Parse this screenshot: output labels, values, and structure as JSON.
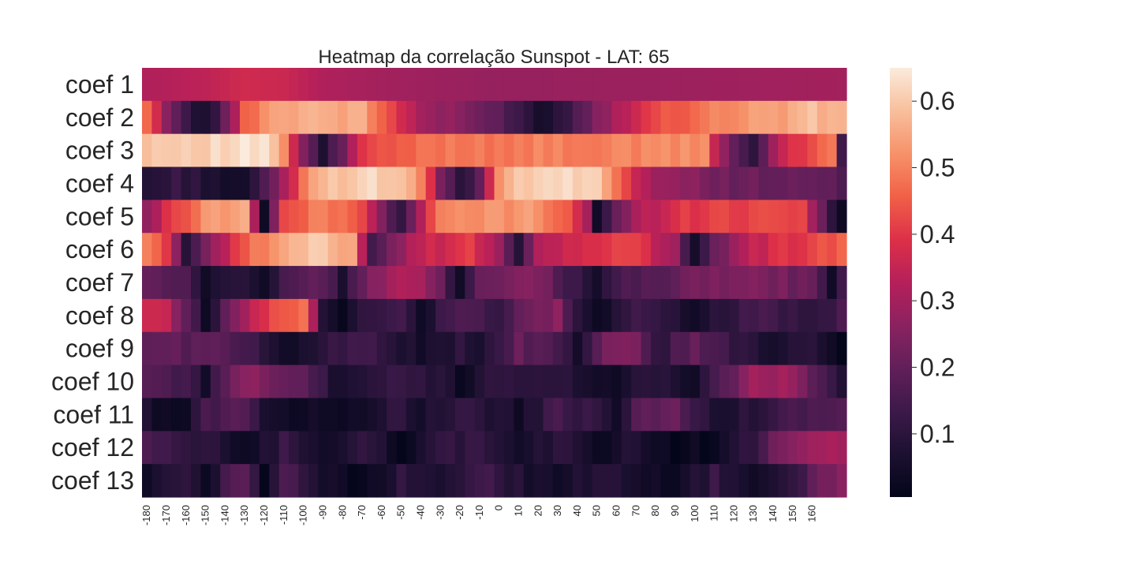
{
  "chart_data": {
    "type": "heatmap",
    "title": "Heatmap da correlação Sunspot - LAT: 65",
    "xlabel": "",
    "ylabel": "",
    "rows": [
      "coef 1",
      "coef 2",
      "coef 3",
      "coef 4",
      "coef 5",
      "coef 6",
      "coef 7",
      "coef 8",
      "coef 9",
      "coef 10",
      "coef 11",
      "coef 12",
      "coef 13"
    ],
    "x_start": -180,
    "x_step": 5,
    "x_count": 72,
    "x_tick_labels": [
      "-180",
      "-170",
      "-160",
      "-150",
      "-140",
      "-130",
      "-120",
      "-110",
      "-100",
      "-90",
      "-80",
      "-70",
      "-60",
      "-50",
      "-40",
      "-30",
      "-20",
      "-10",
      "0",
      "10",
      "20",
      "30",
      "40",
      "50",
      "60",
      "70",
      "80",
      "90",
      "100",
      "110",
      "120",
      "130",
      "140",
      "150",
      "160"
    ],
    "colorbar": {
      "vmin": 0.005,
      "vmax": 0.65,
      "ticks": [
        0.1,
        0.2,
        0.3,
        0.4,
        0.5,
        0.6
      ],
      "tick_labels": [
        "0.1",
        "0.2",
        "0.3",
        "0.4",
        "0.5",
        "0.6"
      ],
      "colormap": "rocket"
    },
    "row_profiles": [
      [
        [
          0,
          0.32
        ],
        [
          6,
          0.34
        ],
        [
          10,
          0.37
        ],
        [
          14,
          0.36
        ],
        [
          18,
          0.32
        ],
        [
          24,
          0.3
        ],
        [
          35,
          0.28
        ],
        [
          54,
          0.29
        ],
        [
          71,
          0.3
        ]
      ],
      [
        [
          0,
          0.45
        ],
        [
          2,
          0.28
        ],
        [
          4,
          0.12
        ],
        [
          6,
          0.06
        ],
        [
          8,
          0.2
        ],
        [
          10,
          0.45
        ],
        [
          12,
          0.53
        ],
        [
          16,
          0.57
        ],
        [
          22,
          0.55
        ],
        [
          24,
          0.46
        ],
        [
          28,
          0.3
        ],
        [
          34,
          0.22
        ],
        [
          38,
          0.15
        ],
        [
          40,
          0.05
        ],
        [
          42,
          0.1
        ],
        [
          46,
          0.25
        ],
        [
          48,
          0.33
        ],
        [
          52,
          0.42
        ],
        [
          56,
          0.48
        ],
        [
          60,
          0.52
        ],
        [
          65,
          0.55
        ],
        [
          68,
          0.58
        ],
        [
          71,
          0.55
        ]
      ],
      [
        [
          0,
          0.6
        ],
        [
          8,
          0.62
        ],
        [
          12,
          0.64
        ],
        [
          14,
          0.5
        ],
        [
          16,
          0.25
        ],
        [
          18,
          0.08
        ],
        [
          20,
          0.22
        ],
        [
          22,
          0.4
        ],
        [
          26,
          0.45
        ],
        [
          30,
          0.49
        ],
        [
          50,
          0.5
        ],
        [
          57,
          0.52
        ],
        [
          58,
          0.35
        ],
        [
          60,
          0.2
        ],
        [
          62,
          0.1
        ],
        [
          64,
          0.3
        ],
        [
          66,
          0.38
        ],
        [
          68,
          0.45
        ],
        [
          70,
          0.5
        ],
        [
          71,
          0.12
        ]
      ],
      [
        [
          0,
          0.08
        ],
        [
          3,
          0.12
        ],
        [
          5,
          0.1
        ],
        [
          8,
          0.06
        ],
        [
          10,
          0.04
        ],
        [
          12,
          0.15
        ],
        [
          14,
          0.3
        ],
        [
          16,
          0.48
        ],
        [
          18,
          0.58
        ],
        [
          22,
          0.62
        ],
        [
          26,
          0.6
        ],
        [
          28,
          0.5
        ],
        [
          30,
          0.25
        ],
        [
          32,
          0.08
        ],
        [
          34,
          0.2
        ],
        [
          36,
          0.5
        ],
        [
          38,
          0.6
        ],
        [
          42,
          0.62
        ],
        [
          44,
          0.61
        ],
        [
          46,
          0.6
        ],
        [
          48,
          0.5
        ],
        [
          50,
          0.35
        ],
        [
          52,
          0.3
        ],
        [
          56,
          0.25
        ],
        [
          60,
          0.22
        ],
        [
          66,
          0.2
        ],
        [
          71,
          0.18
        ]
      ],
      [
        [
          0,
          0.28
        ],
        [
          3,
          0.42
        ],
        [
          6,
          0.52
        ],
        [
          10,
          0.57
        ],
        [
          11,
          0.3
        ],
        [
          12,
          0.05
        ],
        [
          13,
          0.25
        ],
        [
          14,
          0.42
        ],
        [
          18,
          0.5
        ],
        [
          22,
          0.44
        ],
        [
          24,
          0.25
        ],
        [
          26,
          0.1
        ],
        [
          28,
          0.32
        ],
        [
          30,
          0.5
        ],
        [
          34,
          0.52
        ],
        [
          40,
          0.53
        ],
        [
          43,
          0.45
        ],
        [
          45,
          0.3
        ],
        [
          46,
          0.05
        ],
        [
          48,
          0.2
        ],
        [
          50,
          0.3
        ],
        [
          54,
          0.4
        ],
        [
          60,
          0.42
        ],
        [
          67,
          0.43
        ],
        [
          69,
          0.2
        ],
        [
          71,
          0.02
        ]
      ],
      [
        [
          0,
          0.5
        ],
        [
          2,
          0.4
        ],
        [
          4,
          0.1
        ],
        [
          6,
          0.25
        ],
        [
          8,
          0.35
        ],
        [
          10,
          0.45
        ],
        [
          14,
          0.55
        ],
        [
          18,
          0.6
        ],
        [
          21,
          0.55
        ],
        [
          23,
          0.15
        ],
        [
          25,
          0.25
        ],
        [
          28,
          0.35
        ],
        [
          33,
          0.4
        ],
        [
          36,
          0.3
        ],
        [
          38,
          0.1
        ],
        [
          40,
          0.3
        ],
        [
          44,
          0.38
        ],
        [
          50,
          0.42
        ],
        [
          54,
          0.28
        ],
        [
          56,
          0.05
        ],
        [
          58,
          0.2
        ],
        [
          60,
          0.3
        ],
        [
          64,
          0.38
        ],
        [
          68,
          0.42
        ],
        [
          71,
          0.45
        ]
      ],
      [
        [
          0,
          0.2
        ],
        [
          4,
          0.15
        ],
        [
          6,
          0.05
        ],
        [
          9,
          0.1
        ],
        [
          12,
          0.05
        ],
        [
          14,
          0.15
        ],
        [
          18,
          0.2
        ],
        [
          20,
          0.08
        ],
        [
          22,
          0.2
        ],
        [
          25,
          0.32
        ],
        [
          28,
          0.3
        ],
        [
          30,
          0.22
        ],
        [
          32,
          0.05
        ],
        [
          34,
          0.2
        ],
        [
          40,
          0.25
        ],
        [
          44,
          0.12
        ],
        [
          46,
          0.05
        ],
        [
          48,
          0.15
        ],
        [
          56,
          0.22
        ],
        [
          62,
          0.25
        ],
        [
          68,
          0.2
        ],
        [
          70,
          0.05
        ],
        [
          71,
          0.15
        ]
      ],
      [
        [
          0,
          0.38
        ],
        [
          2,
          0.35
        ],
        [
          4,
          0.2
        ],
        [
          6,
          0.05
        ],
        [
          9,
          0.25
        ],
        [
          11,
          0.35
        ],
        [
          13,
          0.45
        ],
        [
          16,
          0.48
        ],
        [
          17,
          0.3
        ],
        [
          18,
          0.1
        ],
        [
          20,
          0.02
        ],
        [
          22,
          0.12
        ],
        [
          26,
          0.15
        ],
        [
          28,
          0.05
        ],
        [
          32,
          0.18
        ],
        [
          36,
          0.1
        ],
        [
          38,
          0.2
        ],
        [
          42,
          0.25
        ],
        [
          44,
          0.1
        ],
        [
          46,
          0.02
        ],
        [
          50,
          0.15
        ],
        [
          54,
          0.1
        ],
        [
          56,
          0.05
        ],
        [
          62,
          0.15
        ],
        [
          68,
          0.12
        ],
        [
          71,
          0.15
        ]
      ],
      [
        [
          0,
          0.2
        ],
        [
          8,
          0.18
        ],
        [
          12,
          0.1
        ],
        [
          14,
          0.05
        ],
        [
          18,
          0.1
        ],
        [
          22,
          0.15
        ],
        [
          28,
          0.05
        ],
        [
          32,
          0.1
        ],
        [
          34,
          0.05
        ],
        [
          38,
          0.2
        ],
        [
          42,
          0.15
        ],
        [
          44,
          0.05
        ],
        [
          46,
          0.18
        ],
        [
          48,
          0.25
        ],
        [
          50,
          0.22
        ],
        [
          52,
          0.1
        ],
        [
          56,
          0.2
        ],
        [
          60,
          0.12
        ],
        [
          64,
          0.05
        ],
        [
          68,
          0.1
        ],
        [
          71,
          0.02
        ]
      ],
      [
        [
          0,
          0.18
        ],
        [
          4,
          0.15
        ],
        [
          6,
          0.05
        ],
        [
          8,
          0.2
        ],
        [
          10,
          0.28
        ],
        [
          12,
          0.25
        ],
        [
          16,
          0.18
        ],
        [
          20,
          0.05
        ],
        [
          24,
          0.12
        ],
        [
          30,
          0.1
        ],
        [
          32,
          0.02
        ],
        [
          36,
          0.12
        ],
        [
          40,
          0.1
        ],
        [
          44,
          0.08
        ],
        [
          48,
          0.05
        ],
        [
          52,
          0.1
        ],
        [
          56,
          0.05
        ],
        [
          58,
          0.15
        ],
        [
          60,
          0.2
        ],
        [
          62,
          0.3
        ],
        [
          66,
          0.28
        ],
        [
          68,
          0.18
        ],
        [
          71,
          0.08
        ]
      ],
      [
        [
          0,
          0.06
        ],
        [
          4,
          0.03
        ],
        [
          6,
          0.15
        ],
        [
          10,
          0.18
        ],
        [
          12,
          0.08
        ],
        [
          14,
          0.05
        ],
        [
          18,
          0.03
        ],
        [
          22,
          0.06
        ],
        [
          26,
          0.12
        ],
        [
          28,
          0.05
        ],
        [
          32,
          0.12
        ],
        [
          36,
          0.08
        ],
        [
          38,
          0.04
        ],
        [
          42,
          0.15
        ],
        [
          46,
          0.1
        ],
        [
          48,
          0.05
        ],
        [
          50,
          0.18
        ],
        [
          54,
          0.2
        ],
        [
          58,
          0.06
        ],
        [
          62,
          0.1
        ],
        [
          66,
          0.15
        ],
        [
          71,
          0.18
        ]
      ],
      [
        [
          0,
          0.15
        ],
        [
          4,
          0.1
        ],
        [
          8,
          0.08
        ],
        [
          10,
          0.02
        ],
        [
          14,
          0.12
        ],
        [
          18,
          0.05
        ],
        [
          22,
          0.1
        ],
        [
          26,
          0.03
        ],
        [
          30,
          0.1
        ],
        [
          34,
          0.12
        ],
        [
          38,
          0.05
        ],
        [
          42,
          0.1
        ],
        [
          46,
          0.03
        ],
        [
          50,
          0.08
        ],
        [
          54,
          0.02
        ],
        [
          58,
          0.03
        ],
        [
          62,
          0.12
        ],
        [
          64,
          0.2
        ],
        [
          66,
          0.25
        ],
        [
          68,
          0.3
        ],
        [
          71,
          0.3
        ]
      ],
      [
        [
          0,
          0.05
        ],
        [
          4,
          0.1
        ],
        [
          6,
          0.02
        ],
        [
          8,
          0.15
        ],
        [
          10,
          0.18
        ],
        [
          12,
          0.03
        ],
        [
          14,
          0.18
        ],
        [
          18,
          0.05
        ],
        [
          22,
          0.02
        ],
        [
          26,
          0.1
        ],
        [
          30,
          0.05
        ],
        [
          34,
          0.15
        ],
        [
          38,
          0.08
        ],
        [
          42,
          0.03
        ],
        [
          46,
          0.1
        ],
        [
          50,
          0.05
        ],
        [
          54,
          0.02
        ],
        [
          58,
          0.12
        ],
        [
          62,
          0.03
        ],
        [
          66,
          0.1
        ],
        [
          68,
          0.2
        ],
        [
          71,
          0.25
        ]
      ]
    ]
  }
}
